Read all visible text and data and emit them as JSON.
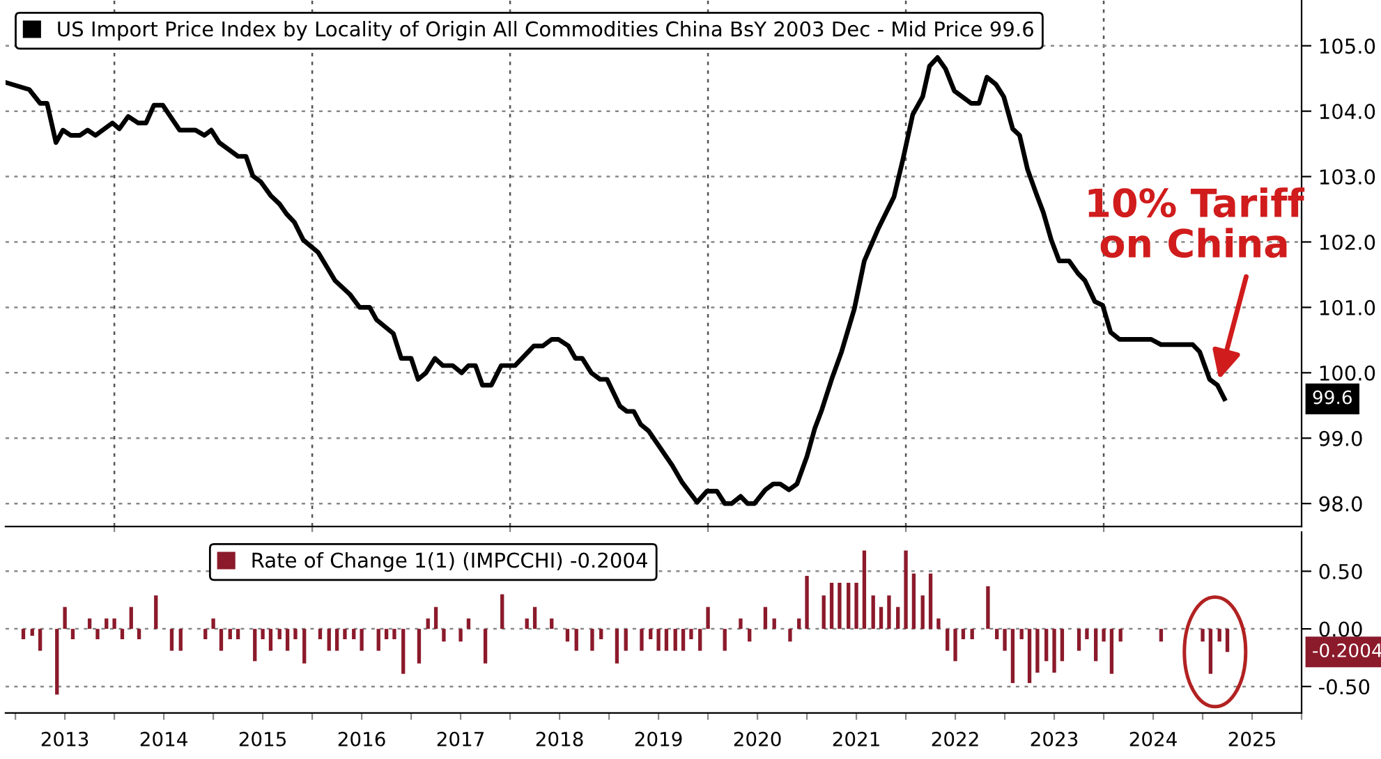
{
  "chart_data": [
    {
      "type": "line",
      "series": [
        {
          "name": "US Import Price Index by Locality of Origin All Commodities China BsY 2003 Dec - Mid Price 99.6",
          "color": "#000000",
          "x": [
            2012.9,
            2013.14,
            2013.25,
            2013.32,
            2013.41,
            2013.48,
            2013.56,
            2013.65,
            2013.73,
            2013.81,
            2013.98,
            2014.05,
            2014.14,
            2014.24,
            2014.32,
            2014.4,
            2014.49,
            2014.66,
            2014.82,
            2014.91,
            2014.98,
            2015.06,
            2015.25,
            2015.33,
            2015.4,
            2015.48,
            2015.58,
            2015.67,
            2015.74,
            2015.82,
            2015.91,
            2016.06,
            2016.23,
            2016.38,
            2016.48,
            2016.58,
            2016.65,
            2016.82,
            2016.9,
            2017.0,
            2017.07,
            2017.15,
            2017.24,
            2017.32,
            2017.42,
            2017.51,
            2017.58,
            2017.65,
            2017.72,
            2017.81,
            2017.91,
            2018.05,
            2018.24,
            2018.33,
            2018.42,
            2018.49,
            2018.59,
            2018.66,
            2018.73,
            2018.82,
            2018.91,
            2018.98,
            2019.11,
            2019.18,
            2019.25,
            2019.32,
            2019.4,
            2019.64,
            2019.74,
            2019.89,
            2019.99,
            2020.09,
            2020.17,
            2020.24,
            2020.33,
            2020.4,
            2020.47,
            2020.58,
            2020.66,
            2020.73,
            2020.82,
            2020.9,
            2021.0,
            2021.08,
            2021.15,
            2021.25,
            2021.35,
            2021.48,
            2021.58,
            2021.72,
            2021.88,
            2021.97,
            2022.07,
            2022.17,
            2022.24,
            2022.32,
            2022.4,
            2022.49,
            2022.66,
            2022.74,
            2022.82,
            2022.91,
            2022.99,
            2023.08,
            2023.15,
            2023.23,
            2023.32,
            2023.39,
            2023.47,
            2023.55,
            2023.65,
            2023.74,
            2023.81,
            2023.91,
            2023.99,
            2024.07,
            2024.16,
            2024.48,
            2024.58,
            2024.9,
            2024.97,
            2025.07,
            2025.15,
            2025.22
          ],
          "values": [
            104.44,
            104.33,
            104.12,
            104.12,
            103.52,
            103.71,
            103.63,
            103.63,
            103.71,
            103.63,
            103.82,
            103.73,
            103.92,
            103.82,
            103.82,
            104.09,
            104.09,
            103.71,
            103.71,
            103.63,
            103.71,
            103.52,
            103.31,
            103.31,
            103.01,
            102.92,
            102.71,
            102.58,
            102.43,
            102.3,
            102.03,
            101.84,
            101.41,
            101.2,
            101.0,
            101.0,
            100.81,
            100.6,
            100.22,
            100.22,
            99.9,
            100.0,
            100.22,
            100.11,
            100.11,
            100.0,
            100.11,
            100.11,
            99.81,
            99.81,
            100.11,
            100.11,
            100.41,
            100.41,
            100.51,
            100.51,
            100.41,
            100.22,
            100.22,
            100.0,
            99.9,
            99.9,
            99.49,
            99.41,
            99.41,
            99.21,
            99.11,
            98.58,
            98.32,
            98.02,
            98.19,
            98.19,
            98.0,
            98.0,
            98.11,
            98.0,
            98.0,
            98.21,
            98.3,
            98.3,
            98.21,
            98.3,
            98.72,
            99.15,
            99.43,
            99.9,
            100.32,
            100.98,
            101.71,
            102.2,
            102.69,
            103.26,
            103.95,
            104.22,
            104.69,
            104.82,
            104.65,
            104.31,
            104.12,
            104.12,
            104.52,
            104.41,
            104.22,
            103.73,
            103.63,
            103.11,
            102.73,
            102.45,
            102.03,
            101.71,
            101.71,
            101.52,
            101.41,
            101.09,
            101.03,
            100.62,
            100.51,
            100.51,
            100.43,
            100.43,
            100.32,
            99.9,
            99.81,
            99.6
          ]
        }
      ],
      "xlim": [
        2012.9,
        2026.0
      ],
      "xticks": [
        {
          "value": 2014,
          "label": null
        },
        {
          "value": 2016,
          "label": null
        },
        {
          "value": 2018,
          "label": null
        },
        {
          "value": 2020,
          "label": null
        },
        {
          "value": 2022,
          "label": null
        },
        {
          "value": 2024,
          "label": null
        }
      ],
      "ylim": [
        97.65,
        105.7
      ],
      "yticks": [
        {
          "value": 98,
          "label": "98.0"
        },
        {
          "value": 99,
          "label": "99.0"
        },
        {
          "value": 100,
          "label": "100.0"
        },
        {
          "value": 101,
          "label": "101.0"
        },
        {
          "value": 102,
          "label": "102.0"
        },
        {
          "value": 103,
          "label": "103.0"
        },
        {
          "value": 104,
          "label": "104.0"
        },
        {
          "value": 105,
          "label": "105.0"
        }
      ],
      "tick_labels": "y",
      "grid": true,
      "legend": "top left",
      "line_style": "solid",
      "annotations": [
        "99.6",
        {
          "text": "10% Tariff\non China",
          "x": 2025.15,
          "y": 99.81
        }
      ]
    },
    {
      "type": "bar",
      "series": [
        {
          "name": "Rate of Change 1(1) (IMPCCHI) -0.2004",
          "color": "#8b1a2b",
          "x": [
            2013.08,
            2013.17,
            2013.25,
            2013.42,
            2013.5,
            2013.58,
            2013.75,
            2013.83,
            2013.92,
            2014.0,
            2014.08,
            2014.17,
            2014.25,
            2014.42,
            2014.58,
            2014.67,
            2014.92,
            2015.0,
            2015.08,
            2015.17,
            2015.25,
            2015.42,
            2015.5,
            2015.58,
            2015.67,
            2015.75,
            2015.83,
            2015.92,
            2016.08,
            2016.17,
            2016.25,
            2016.33,
            2016.42,
            2016.5,
            2016.67,
            2016.75,
            2016.83,
            2016.92,
            2017.08,
            2017.17,
            2017.25,
            2017.33,
            2017.5,
            2017.58,
            2017.75,
            2017.92,
            2018.17,
            2018.25,
            2018.42,
            2018.58,
            2018.67,
            2018.83,
            2018.92,
            2019.08,
            2019.17,
            2019.33,
            2019.42,
            2019.5,
            2019.58,
            2019.67,
            2019.75,
            2019.83,
            2019.92,
            2020.0,
            2020.17,
            2020.33,
            2020.42,
            2020.58,
            2020.67,
            2020.83,
            2020.92,
            2021.0,
            2021.17,
            2021.25,
            2021.33,
            2021.42,
            2021.5,
            2021.58,
            2021.67,
            2021.75,
            2021.83,
            2021.92,
            2022.0,
            2022.08,
            2022.17,
            2022.25,
            2022.33,
            2022.42,
            2022.5,
            2022.58,
            2022.67,
            2022.83,
            2022.92,
            2023.0,
            2023.08,
            2023.17,
            2023.25,
            2023.33,
            2023.42,
            2023.5,
            2023.58,
            2023.75,
            2023.83,
            2023.92,
            2024.0,
            2024.08,
            2024.17,
            2024.58,
            2025.0,
            2025.08,
            2025.17,
            2025.25
          ],
          "values": [
            -0.09,
            -0.06,
            -0.19,
            -0.57,
            0.19,
            -0.09,
            0.09,
            -0.09,
            0.09,
            0.09,
            -0.09,
            0.19,
            -0.09,
            0.29,
            -0.19,
            -0.19,
            -0.09,
            0.09,
            -0.19,
            -0.09,
            -0.09,
            -0.28,
            -0.09,
            -0.19,
            -0.09,
            -0.19,
            -0.09,
            -0.3,
            -0.09,
            -0.19,
            -0.19,
            -0.09,
            -0.09,
            -0.19,
            -0.19,
            -0.09,
            -0.09,
            -0.39,
            -0.3,
            0.09,
            0.19,
            -0.11,
            -0.11,
            0.09,
            -0.3,
            0.3,
            0.09,
            0.19,
            0.09,
            -0.11,
            -0.19,
            -0.19,
            -0.09,
            -0.3,
            -0.19,
            -0.19,
            -0.09,
            -0.19,
            -0.19,
            -0.19,
            -0.19,
            -0.09,
            -0.19,
            0.19,
            -0.19,
            0.09,
            -0.11,
            0.19,
            0.09,
            -0.11,
            0.09,
            0.46,
            0.29,
            0.4,
            0.4,
            0.4,
            0.4,
            0.68,
            0.29,
            0.19,
            0.29,
            0.19,
            0.68,
            0.48,
            0.29,
            0.48,
            0.09,
            -0.19,
            -0.28,
            -0.09,
            -0.09,
            0.37,
            -0.09,
            -0.19,
            -0.47,
            -0.09,
            -0.47,
            -0.38,
            -0.28,
            -0.38,
            -0.28,
            -0.19,
            -0.09,
            -0.28,
            -0.11,
            -0.39,
            -0.11,
            -0.11,
            -0.11,
            -0.39,
            -0.11,
            -0.2004
          ]
        }
      ],
      "xlim": [
        2012.9,
        2026.0
      ],
      "xticks": [
        {
          "value": 2013,
          "label": null
        },
        {
          "value": 2014,
          "label": null
        },
        {
          "value": 2015,
          "label": null
        },
        {
          "value": 2016,
          "label": null
        },
        {
          "value": 2017,
          "label": null
        },
        {
          "value": 2018,
          "label": null
        },
        {
          "value": 2019,
          "label": null
        },
        {
          "value": 2020,
          "label": null
        },
        {
          "value": 2021,
          "label": null
        },
        {
          "value": 2022,
          "label": null
        },
        {
          "value": 2023,
          "label": null
        },
        {
          "value": 2024,
          "label": null
        },
        {
          "value": 2025,
          "label": null
        },
        {
          "value": 2026,
          "label": null
        },
        {
          "value": 2013.5,
          "label": "2013"
        },
        {
          "value": 2014.5,
          "label": "2014"
        },
        {
          "value": 2015.5,
          "label": "2015"
        },
        {
          "value": 2016.5,
          "label": "2016"
        },
        {
          "value": 2017.5,
          "label": "2017"
        },
        {
          "value": 2018.5,
          "label": "2018"
        },
        {
          "value": 2019.5,
          "label": "2019"
        },
        {
          "value": 2020.5,
          "label": "2020"
        },
        {
          "value": 2021.5,
          "label": "2021"
        },
        {
          "value": 2022.5,
          "label": "2022"
        },
        {
          "value": 2023.5,
          "label": "2023"
        },
        {
          "value": 2024.5,
          "label": "2024"
        },
        {
          "value": 2025.5,
          "label": "2025"
        }
      ],
      "ylim": [
        -0.73,
        0.84
      ],
      "yticks": [
        {
          "value": -0.5,
          "label": "-0.50"
        },
        {
          "value": 0,
          "label": "0.00"
        },
        {
          "value": 0.5,
          "label": "0.50"
        }
      ],
      "grid": "y",
      "legend": "top",
      "annotations": [
        "-0.2004"
      ]
    }
  ]
}
